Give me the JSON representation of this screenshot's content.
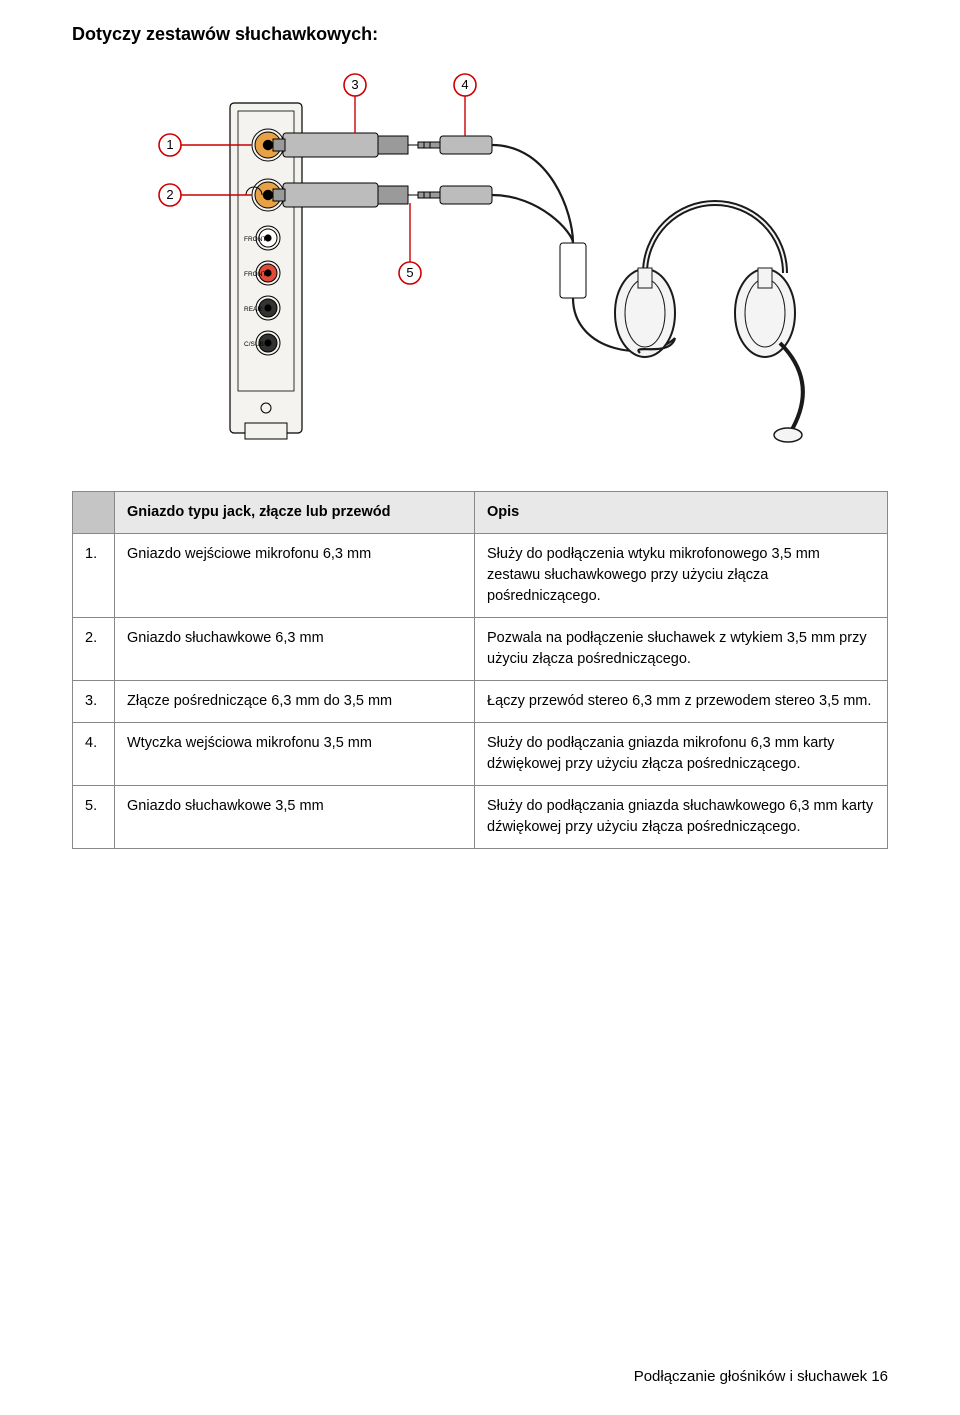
{
  "title": "Dotyczy zestawów słuchawkowych:",
  "table": {
    "headers": {
      "num": "",
      "col1": "Gniazdo typu jack, złącze lub przewód",
      "col2": "Opis"
    },
    "rows": [
      {
        "n": "1.",
        "c1": "Gniazdo wejściowe mikrofonu 6,3 mm",
        "c2": "Służy do podłączenia wtyku mikrofonowego 3,5 mm zestawu słuchawkowego przy użyciu złącza pośredniczącego."
      },
      {
        "n": "2.",
        "c1": "Gniazdo słuchawkowe 6,3 mm",
        "c2": "Pozwala na podłączenie słuchawek z wtykiem 3,5 mm przy użyciu złącza pośredniczącego."
      },
      {
        "n": "3.",
        "c1": "Złącze pośredniczące 6,3 mm do 3,5 mm",
        "c2": "Łączy przewód stereo 6,3 mm z przewodem stereo 3,5 mm."
      },
      {
        "n": "4.",
        "c1": "Wtyczka wejściowa mikrofonu 3,5 mm",
        "c2": "Służy do podłączania gniazda mikrofonu 6,3 mm karty dźwiękowej przy użyciu złącza pośredniczącego."
      },
      {
        "n": "5.",
        "c1": "Gniazdo słuchawkowe 3,5 mm",
        "c2": "Służy do podłączania gniazda słuchawkowego 6,3 mm karty dźwiękowej przy użyciu złącza pośredniczącego."
      }
    ]
  },
  "diagram": {
    "callouts": [
      "1",
      "2",
      "3",
      "4",
      "5"
    ],
    "bracket_labels": [
      "FRONT",
      "FRONT",
      "REAR",
      "C/SUB"
    ],
    "colors": {
      "callout_stroke": "#cc0000",
      "callout_fill": "#ffffff",
      "line": "#000000",
      "bracket_bg": "#f5f3ef",
      "jack_orange": "#e8a245",
      "jack_white": "#ffffff",
      "jack_red": "#e24b3a",
      "jack_black1": "#333333",
      "jack_black2": "#333333",
      "plug_gray": "#bcbcbc",
      "plug_metal": "#9a9a9a",
      "wire": "#1a1a1a",
      "headphone_fill": "#f4f4f4",
      "headphone_stroke": "#1a1a1a",
      "splitter_fill": "#ffffff"
    },
    "label_fontsize": 6.5
  },
  "footer": {
    "text": "Podłączanie głośników i słuchawek 16"
  }
}
